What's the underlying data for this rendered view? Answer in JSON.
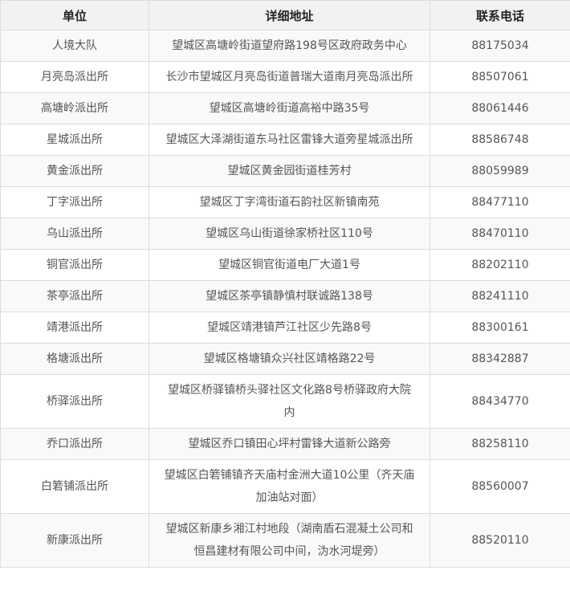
{
  "table": {
    "headers": [
      "单位",
      "详细地址",
      "联系电话"
    ],
    "rows": [
      {
        "unit": "人境大队",
        "address": "望城区高塘岭街道望府路198号区政府政务中心",
        "phone": "88175034"
      },
      {
        "unit": "月亮岛派出所",
        "address": "长沙市望城区月亮岛街道普瑞大道南月亮岛派出所",
        "phone": "88507061"
      },
      {
        "unit": "高塘岭派出所",
        "address": "望城区高塘岭街道高裕中路35号",
        "phone": "88061446"
      },
      {
        "unit": "星城派出所",
        "address": "望城区大泽湖街道东马社区雷锋大道旁星城派出所",
        "phone": "88586748"
      },
      {
        "unit": "黄金派出所",
        "address": "望城区黄金园街道桂芳村",
        "phone": "88059989"
      },
      {
        "unit": "丁字派出所",
        "address": "望城区丁字湾街道石韵社区新镇南苑",
        "phone": "88477110"
      },
      {
        "unit": "乌山派出所",
        "address": "望城区乌山街道徐家桥社区110号",
        "phone": "88470110"
      },
      {
        "unit": "铜官派出所",
        "address": "望城区铜官街道电厂大道1号",
        "phone": "88202110"
      },
      {
        "unit": "茶亭派出所",
        "address": "望城区茶亭镇静慎村联诚路138号",
        "phone": "88241110"
      },
      {
        "unit": "靖港派出所",
        "address": "望城区靖港镇芦江社区少先路8号",
        "phone": "88300161"
      },
      {
        "unit": "格塘派出所",
        "address": "望城区格塘镇众兴社区靖格路22号",
        "phone": "88342887"
      },
      {
        "unit": "桥驿派出所",
        "address": "望城区桥驿镇桥头驿社区文化路8号桥驿政府大院内",
        "phone": "88434770"
      },
      {
        "unit": "乔口派出所",
        "address": "望城区乔口镇田心坪村雷锋大道新公路旁",
        "phone": "88258110"
      },
      {
        "unit": "白箬铺派出所",
        "address": "望城区白箬铺镇齐天庙村金洲大道10公里（齐天庙加油站对面）",
        "phone": "88560007"
      },
      {
        "unit": "新康派出所",
        "address": "望城区新康乡湘江村地段（湖南盾石混凝土公司和恒昌建材有限公司中间，沩水河堤旁）",
        "phone": "88520110"
      }
    ]
  }
}
